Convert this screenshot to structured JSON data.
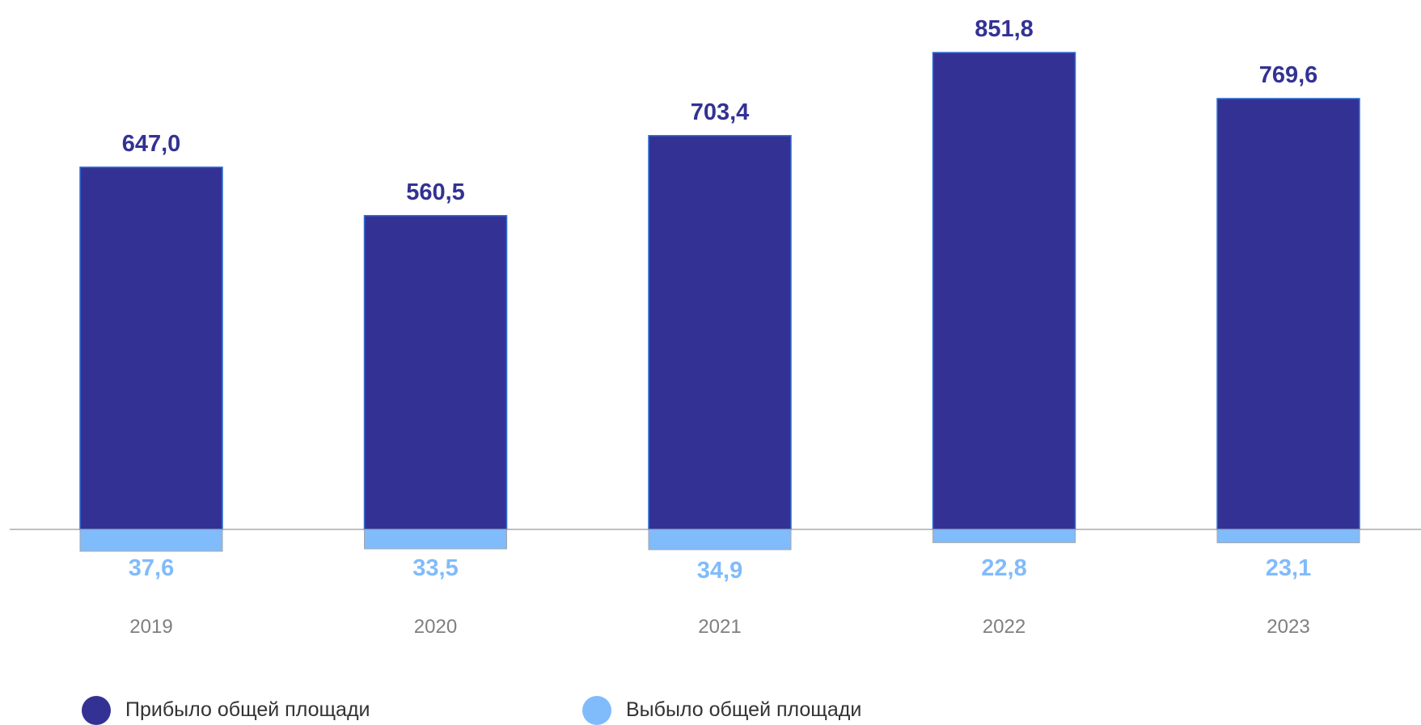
{
  "chart_data": {
    "type": "bar",
    "categories": [
      "2019",
      "2020",
      "2021",
      "2022",
      "2023"
    ],
    "series": [
      {
        "name": "Прибыло общей площади",
        "values": [
          647.0,
          560.5,
          703.4,
          851.8,
          769.6
        ],
        "labels": [
          "647,0",
          "560,5",
          "703,4",
          "851,8",
          "769,6"
        ],
        "color": "#333294"
      },
      {
        "name": "Выбыло общей площади",
        "values": [
          37.6,
          33.5,
          34.9,
          22.8,
          23.1
        ],
        "labels": [
          "37,6",
          "33,5",
          "34,9",
          "22,8",
          "23,1"
        ],
        "color": "#80bbfc",
        "direction": "below-axis"
      }
    ],
    "title": "",
    "xlabel": "",
    "ylabel": "",
    "grid": false,
    "legend": "bottom"
  },
  "colors": {
    "arrived": "#333294",
    "departed": "#80bbfc",
    "axis": "#bfbfbf",
    "year_text": "#7f7f7f"
  }
}
